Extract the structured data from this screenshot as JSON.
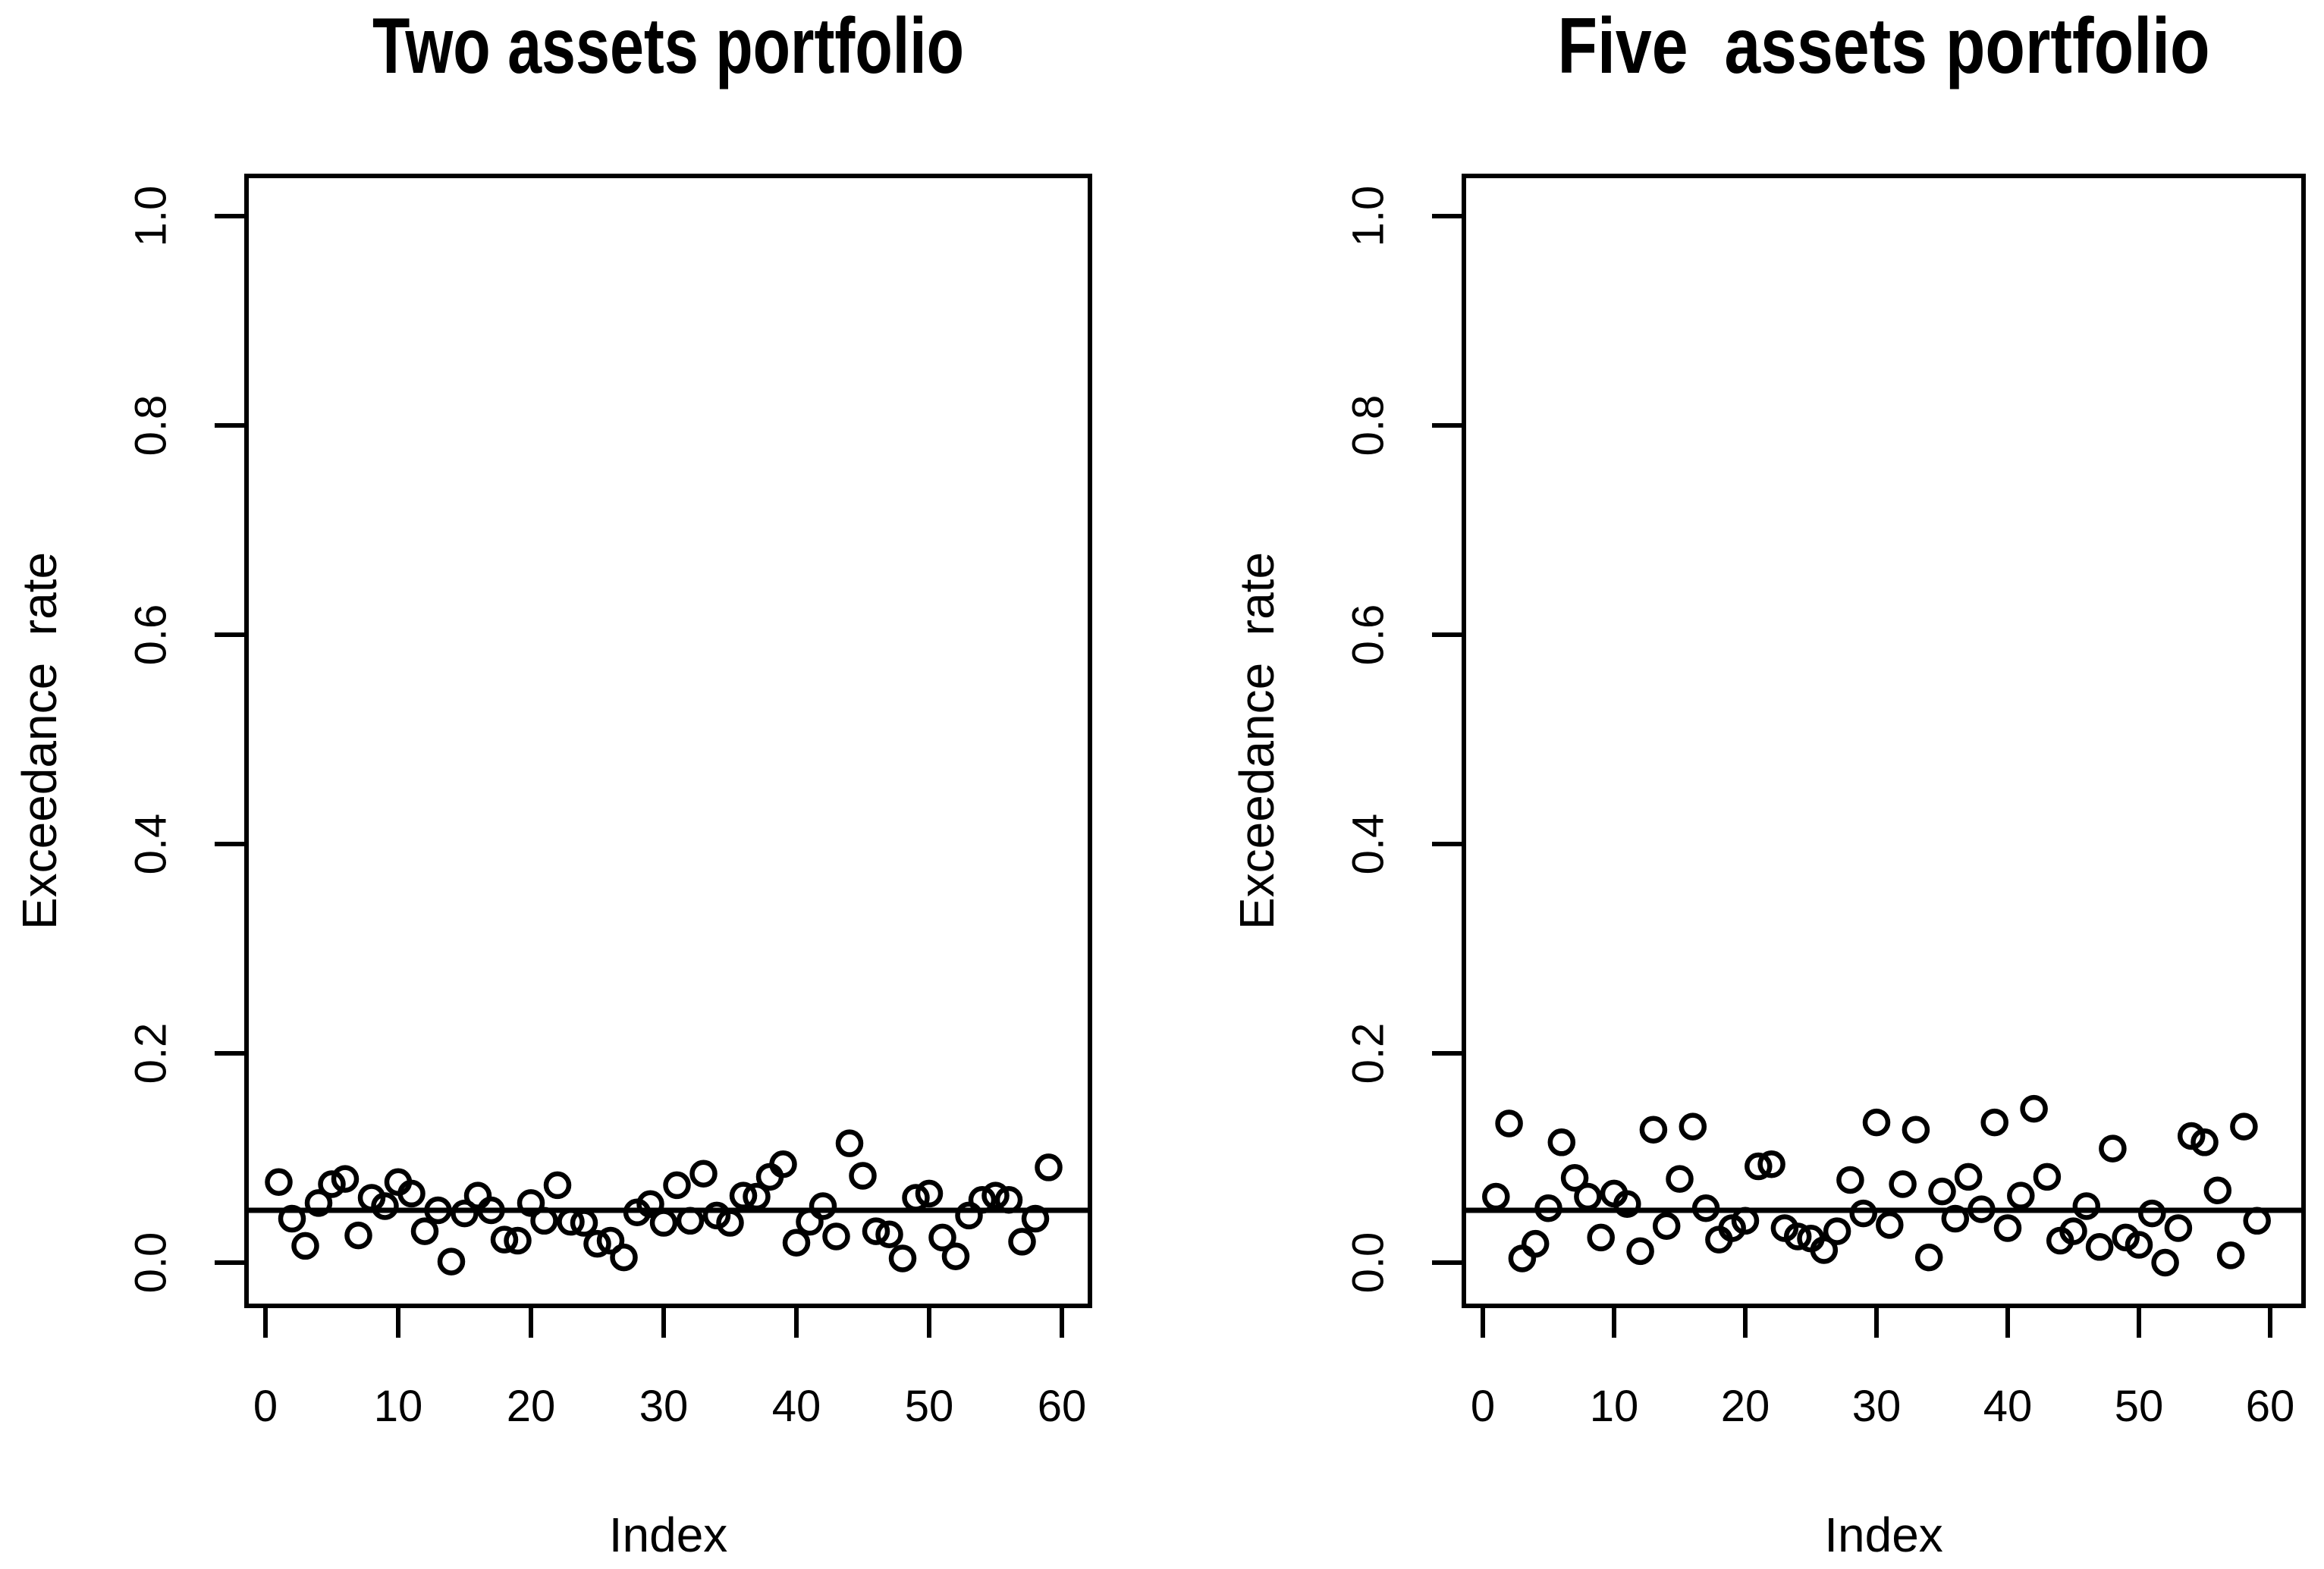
{
  "figure": {
    "background_color": "#ffffff",
    "foreground_color": "#000000"
  },
  "chart_data": [
    {
      "type": "scatter",
      "title": "Two assets portfolio",
      "xlabel": "Index",
      "ylabel": "Exceedance  rate",
      "xlim": [
        0,
        60
      ],
      "ylim": [
        0,
        1
      ],
      "x_tick_labels": [
        "0",
        "10",
        "20",
        "30",
        "40",
        "50",
        "60"
      ],
      "y_tick_labels": [
        "0.0",
        "0.2",
        "0.4",
        "0.6",
        "0.8",
        "1.0"
      ],
      "x_ticks": [
        0,
        10,
        20,
        30,
        40,
        50,
        60
      ],
      "y_ticks": [
        0.0,
        0.2,
        0.4,
        0.6,
        0.8,
        1.0
      ],
      "reference_line_y": 0.05,
      "marker": "open-circle",
      "grid": false,
      "legend": "none",
      "x": [
        1,
        2,
        3,
        4,
        5,
        6,
        7,
        8,
        9,
        10,
        11,
        12,
        13,
        14,
        15,
        16,
        17,
        18,
        19,
        20,
        21,
        22,
        23,
        24,
        25,
        26,
        27,
        28,
        29,
        30,
        31,
        32,
        33,
        34,
        35,
        36,
        37,
        38,
        39,
        40,
        41,
        42,
        43,
        44,
        45,
        46,
        47,
        48,
        49,
        50,
        51,
        52,
        53,
        54,
        55,
        56,
        57,
        58,
        59
      ],
      "y": [
        0.077,
        0.042,
        0.016,
        0.057,
        0.075,
        0.08,
        0.026,
        0.062,
        0.054,
        0.077,
        0.066,
        0.03,
        0.05,
        0.001,
        0.047,
        0.064,
        0.05,
        0.022,
        0.021,
        0.057,
        0.04,
        0.074,
        0.039,
        0.038,
        0.018,
        0.021,
        0.005,
        0.048,
        0.056,
        0.038,
        0.074,
        0.04,
        0.085,
        0.045,
        0.038,
        0.064,
        0.063,
        0.082,
        0.094,
        0.019,
        0.039,
        0.054,
        0.025,
        0.114,
        0.083,
        0.03,
        0.027,
        0.004,
        0.062,
        0.066,
        0.024,
        0.006,
        0.045,
        0.06,
        0.064,
        0.06,
        0.02,
        0.042,
        0.091
      ]
    },
    {
      "type": "scatter",
      "title": "Five  assets portfolio",
      "xlabel": "Index",
      "ylabel": "Exceedance  rate",
      "xlim": [
        0,
        60
      ],
      "ylim": [
        0,
        1
      ],
      "x_tick_labels": [
        "0",
        "10",
        "20",
        "30",
        "40",
        "50",
        "60"
      ],
      "y_tick_labels": [
        "0.0",
        "0.2",
        "0.4",
        "0.6",
        "0.8",
        "1.0"
      ],
      "x_ticks": [
        0,
        10,
        20,
        30,
        40,
        50,
        60
      ],
      "y_ticks": [
        0.0,
        0.2,
        0.4,
        0.6,
        0.8,
        1.0
      ],
      "reference_line_y": 0.05,
      "marker": "open-circle",
      "grid": false,
      "legend": "none",
      "x": [
        1,
        2,
        3,
        4,
        5,
        6,
        7,
        8,
        9,
        10,
        11,
        12,
        13,
        14,
        15,
        16,
        17,
        18,
        19,
        20,
        21,
        22,
        23,
        24,
        25,
        26,
        27,
        28,
        29,
        30,
        31,
        32,
        33,
        34,
        35,
        36,
        37,
        38,
        39,
        40,
        41,
        42,
        43,
        44,
        45,
        46,
        47,
        48,
        49,
        50,
        51,
        52,
        53,
        54,
        55,
        56,
        57,
        58,
        59
      ],
      "y": [
        0.063,
        0.133,
        0.004,
        0.018,
        0.052,
        0.115,
        0.081,
        0.063,
        0.024,
        0.066,
        0.056,
        0.011,
        0.127,
        0.035,
        0.08,
        0.13,
        0.052,
        0.022,
        0.033,
        0.04,
        0.092,
        0.094,
        0.033,
        0.025,
        0.023,
        0.012,
        0.03,
        0.079,
        0.047,
        0.134,
        0.036,
        0.075,
        0.127,
        0.005,
        0.068,
        0.042,
        0.082,
        0.051,
        0.134,
        0.033,
        0.064,
        0.147,
        0.082,
        0.021,
        0.03,
        0.054,
        0.015,
        0.109,
        0.024,
        0.017,
        0.047,
        0.0,
        0.033,
        0.121,
        0.115,
        0.069,
        0.007,
        0.13,
        0.04
      ]
    }
  ]
}
